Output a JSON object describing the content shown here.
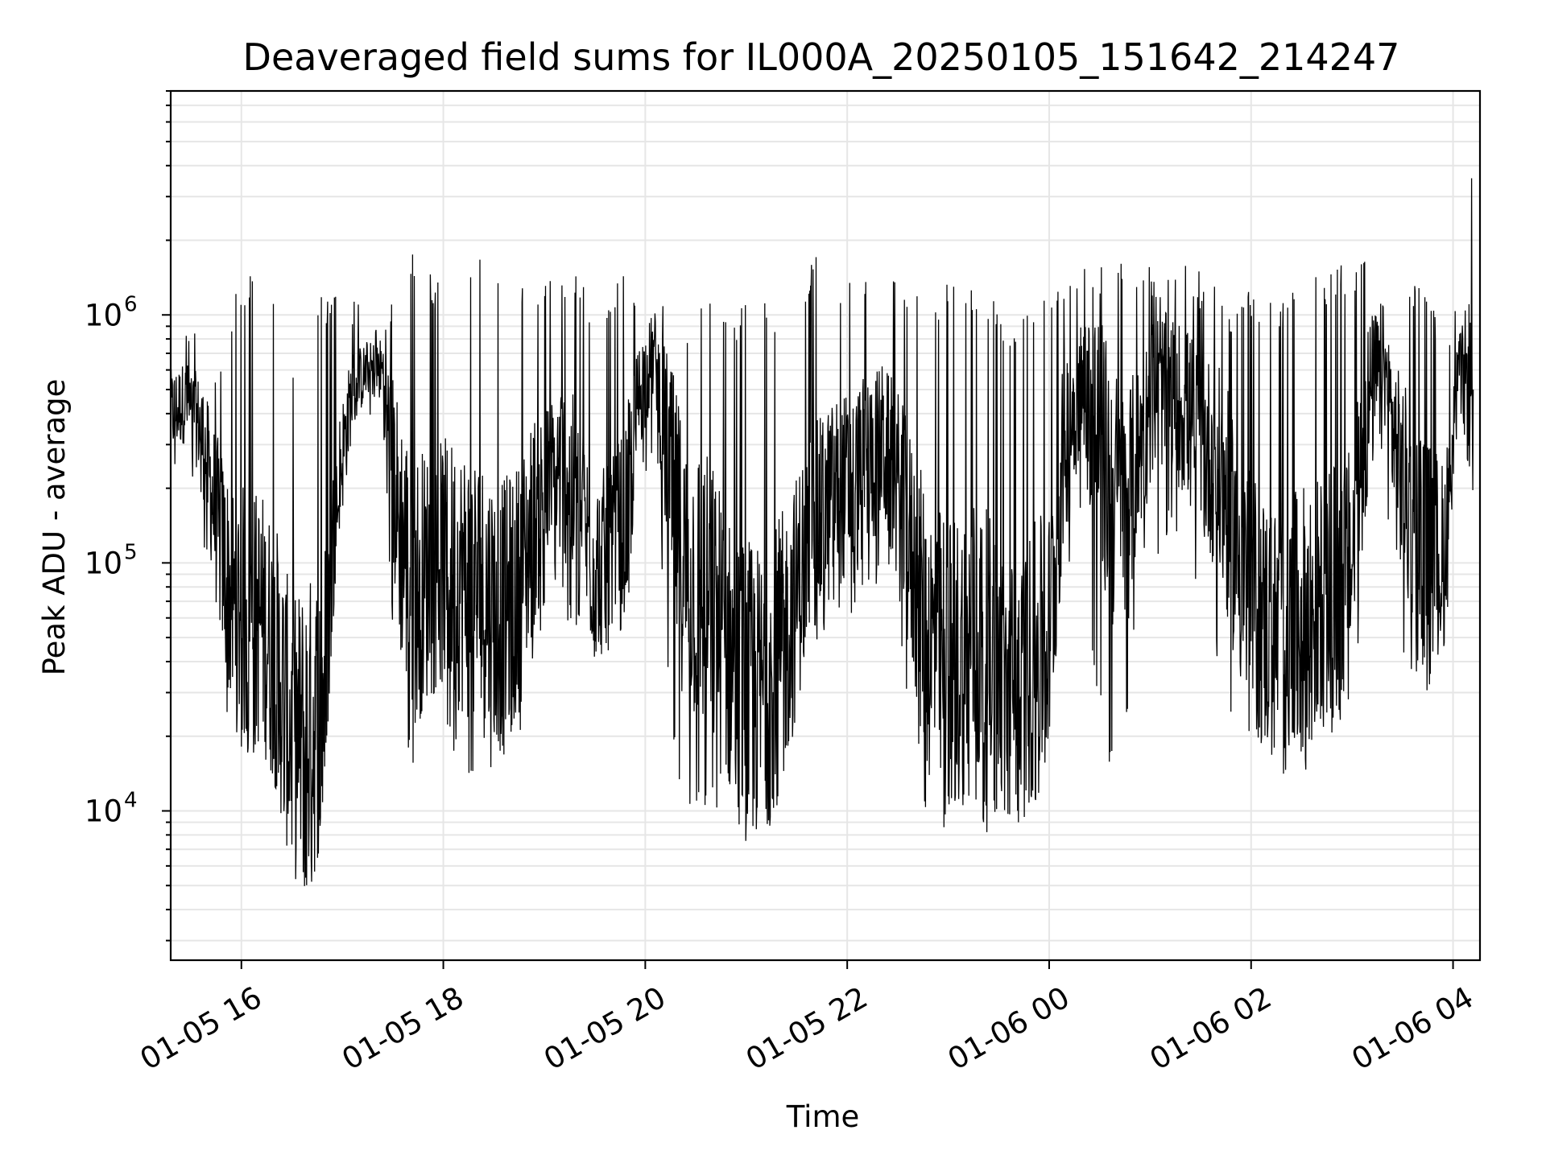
{
  "chart_data": {
    "type": "line",
    "title": "Deaveraged field sums for IL000A_20250105_151642_214247",
    "xlabel": "Time",
    "ylabel": "Peak ADU - average",
    "yscale": "log",
    "xlim": [
      "2025-01-05 15:18",
      "2025-01-06 04:16"
    ],
    "ylim": [
      2500,
      8000000
    ],
    "grid": true,
    "line_color": "#000000",
    "grid_color": "#e6e6e6",
    "x_ticks": [
      {
        "value": "2025-01-05 16:00",
        "label": "01-05 16"
      },
      {
        "value": "2025-01-05 18:00",
        "label": "01-05 18"
      },
      {
        "value": "2025-01-05 20:00",
        "label": "01-05 20"
      },
      {
        "value": "2025-01-05 22:00",
        "label": "01-05 22"
      },
      {
        "value": "2025-01-06 00:00",
        "label": "01-06 00"
      },
      {
        "value": "2025-01-06 02:00",
        "label": "01-06 02"
      },
      {
        "value": "2025-01-06 04:00",
        "label": "01-06 04"
      }
    ],
    "y_ticks": [
      {
        "value": 10000,
        "base": "10",
        "exp": "4"
      },
      {
        "value": 100000,
        "base": "10",
        "exp": "5"
      },
      {
        "value": 1000000,
        "base": "10",
        "exp": "6"
      }
    ],
    "series": [
      {
        "x": [
          "2025-01-05 15:18",
          "2025-01-05 15:27",
          "2025-01-05 15:36",
          "2025-01-05 15:45",
          "2025-01-05 15:54",
          "2025-01-05 16:03",
          "2025-01-05 16:12",
          "2025-01-05 16:21",
          "2025-01-05 16:30",
          "2025-01-05 16:39",
          "2025-01-05 16:48",
          "2025-01-05 16:57",
          "2025-01-05 17:06",
          "2025-01-05 17:15",
          "2025-01-05 17:24",
          "2025-01-05 17:33",
          "2025-01-05 17:42",
          "2025-01-05 17:51",
          "2025-01-05 18:00",
          "2025-01-05 18:09",
          "2025-01-05 18:18",
          "2025-01-05 18:27",
          "2025-01-05 18:36",
          "2025-01-05 18:45",
          "2025-01-05 18:54",
          "2025-01-05 19:03",
          "2025-01-05 19:12",
          "2025-01-05 19:21",
          "2025-01-05 19:30",
          "2025-01-05 19:39",
          "2025-01-05 19:48",
          "2025-01-05 19:57",
          "2025-01-05 20:06",
          "2025-01-05 20:15",
          "2025-01-05 20:24",
          "2025-01-05 20:33",
          "2025-01-05 20:42",
          "2025-01-05 20:51",
          "2025-01-05 21:00",
          "2025-01-05 21:09",
          "2025-01-05 21:18",
          "2025-01-05 21:27",
          "2025-01-05 21:36",
          "2025-01-05 21:45",
          "2025-01-05 21:54",
          "2025-01-05 22:03",
          "2025-01-05 22:12",
          "2025-01-05 22:21",
          "2025-01-05 22:30",
          "2025-01-05 22:39",
          "2025-01-05 22:48",
          "2025-01-05 22:57",
          "2025-01-05 23:06",
          "2025-01-05 23:15",
          "2025-01-05 23:24",
          "2025-01-05 23:33",
          "2025-01-05 23:42",
          "2025-01-05 23:51",
          "2025-01-06 00:00",
          "2025-01-06 00:09",
          "2025-01-06 00:18",
          "2025-01-06 00:27",
          "2025-01-06 00:36",
          "2025-01-06 00:45",
          "2025-01-06 00:54",
          "2025-01-06 01:03",
          "2025-01-06 01:12",
          "2025-01-06 01:21",
          "2025-01-06 01:30",
          "2025-01-06 01:39",
          "2025-01-06 01:48",
          "2025-01-06 01:57",
          "2025-01-06 02:06",
          "2025-01-06 02:15",
          "2025-01-06 02:24",
          "2025-01-06 02:33",
          "2025-01-06 02:42",
          "2025-01-06 02:51",
          "2025-01-06 03:00",
          "2025-01-06 03:09",
          "2025-01-06 03:18",
          "2025-01-06 03:27",
          "2025-01-06 03:36",
          "2025-01-06 03:45",
          "2025-01-06 03:54",
          "2025-01-06 04:03",
          "2025-01-06 04:12"
        ],
        "y": [
          400000,
          450000,
          350000,
          150000,
          70000,
          60000,
          60000,
          40000,
          20000,
          20000,
          25000,
          200000,
          500000,
          600000,
          600000,
          150000,
          80000,
          90000,
          100000,
          90000,
          80000,
          70000,
          60000,
          80000,
          150000,
          200000,
          250000,
          150000,
          100000,
          100000,
          150000,
          500000,
          700000,
          200000,
          90000,
          80000,
          60000,
          40000,
          30000,
          30000,
          40000,
          60000,
          120000,
          150000,
          200000,
          200000,
          250000,
          300000,
          200000,
          100000,
          50000,
          40000,
          40000,
          50000,
          40000,
          30000,
          30000,
          40000,
          50000,
          300000,
          500000,
          400000,
          200000,
          150000,
          300000,
          500000,
          500000,
          400000,
          300000,
          250000,
          150000,
          80000,
          60000,
          50000,
          50000,
          60000,
          70000,
          80000,
          100000,
          400000,
          700000,
          250000,
          150000,
          120000,
          100000,
          600000,
          500000
        ],
        "y_low": [
          200000,
          250000,
          160000,
          30000,
          20000,
          16000,
          18000,
          12000,
          5000,
          4000,
          8000,
          120000,
          300000,
          400000,
          350000,
          20000,
          15000,
          20000,
          20000,
          15000,
          12000,
          15000,
          15000,
          20000,
          40000,
          70000,
          60000,
          45000,
          40000,
          45000,
          50000,
          200000,
          300000,
          20000,
          8000,
          9000,
          10000,
          8000,
          7000,
          8000,
          9000,
          15000,
          40000,
          50000,
          60000,
          60000,
          70000,
          90000,
          50000,
          20000,
          8000,
          7000,
          9000,
          10000,
          8000,
          9000,
          9000,
          10000,
          15000,
          60000,
          150000,
          30000,
          15000,
          20000,
          80000,
          100000,
          120000,
          70000,
          60000,
          40000,
          20000,
          15000,
          15000,
          12000,
          10000,
          15000,
          20000,
          20000,
          30000,
          80000,
          300000,
          50000,
          30000,
          30000,
          30000,
          400000,
          130000
        ],
        "y_high": [
          900000,
          1000000,
          900000,
          600000,
          1200000,
          1500000,
          1500000,
          1200000,
          600000,
          900000,
          1300000,
          1200000,
          1200000,
          1000000,
          1100000,
          1500000,
          1800000,
          1500000,
          1400000,
          1500000,
          1600000,
          1800000,
          1700000,
          1500000,
          1600000,
          1400000,
          1600000,
          1500000,
          1000000,
          1200000,
          1500000,
          1400000,
          1300000,
          1500000,
          1000000,
          1400000,
          1600000,
          900000,
          1300000,
          1200000,
          1000000,
          1100000,
          1600000,
          1800000,
          1500000,
          1700000,
          1500000,
          1500000,
          1500000,
          1300000,
          1000000,
          1300000,
          1600000,
          1400000,
          1300000,
          900000,
          1000000,
          1100000,
          1300000,
          1600000,
          1500000,
          1600000,
          1800000,
          1600000,
          1500000,
          1600000,
          1500000,
          1600000,
          1500000,
          1400000,
          1200000,
          1300000,
          1300000,
          1100000,
          1200000,
          1600000,
          1500000,
          1700000,
          1500000,
          2000000,
          1800000,
          1400000,
          1500000,
          1200000,
          1000000,
          1100000,
          6000000
        ]
      }
    ]
  }
}
